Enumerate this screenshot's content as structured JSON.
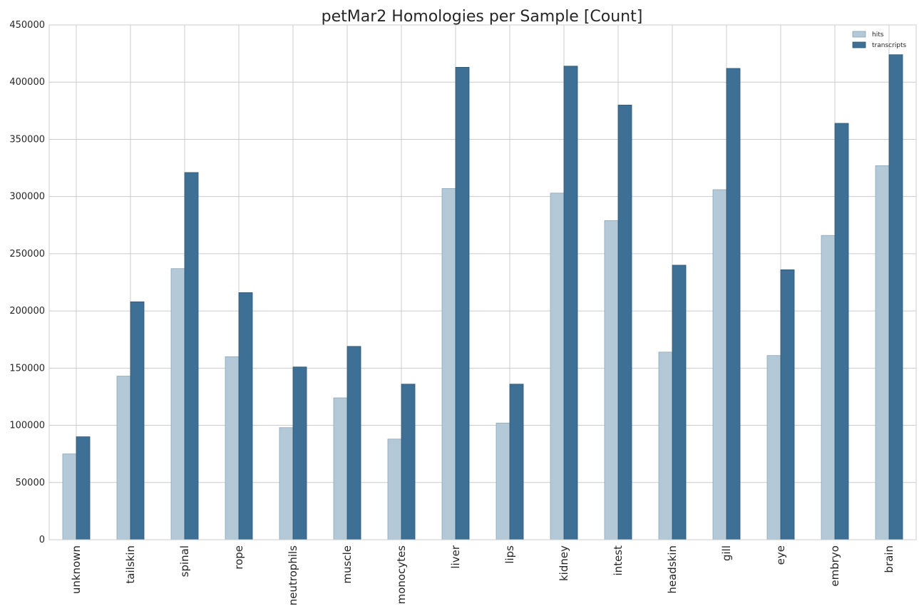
{
  "chart_data": {
    "type": "bar",
    "title": "petMar2 Homologies per Sample [Count]",
    "xlabel": "",
    "ylabel": "",
    "ylim": [
      0,
      450000
    ],
    "yticks": [
      "0",
      "50000",
      "100000",
      "150000",
      "200000",
      "250000",
      "300000",
      "350000",
      "400000",
      "450000"
    ],
    "grid": true,
    "legend_position": "top-right",
    "categories": [
      "unknown",
      "tailskin",
      "spinal",
      "rope",
      "neutrophils",
      "muscle",
      "monocytes",
      "liver",
      "lips",
      "kidney",
      "intest",
      "headskin",
      "gill",
      "eye",
      "embryo",
      "brain"
    ],
    "series": [
      {
        "name": "hits",
        "color": "#b3c9d7",
        "values": [
          75000,
          143000,
          237000,
          160000,
          98000,
          124000,
          88000,
          307000,
          102000,
          303000,
          279000,
          164000,
          306000,
          161000,
          266000,
          327000
        ]
      },
      {
        "name": "transcripts",
        "color": "#3d7094",
        "values": [
          90000,
          208000,
          321000,
          216000,
          151000,
          169000,
          136000,
          413000,
          136000,
          414000,
          380000,
          240000,
          412000,
          236000,
          364000,
          424000
        ]
      }
    ]
  }
}
